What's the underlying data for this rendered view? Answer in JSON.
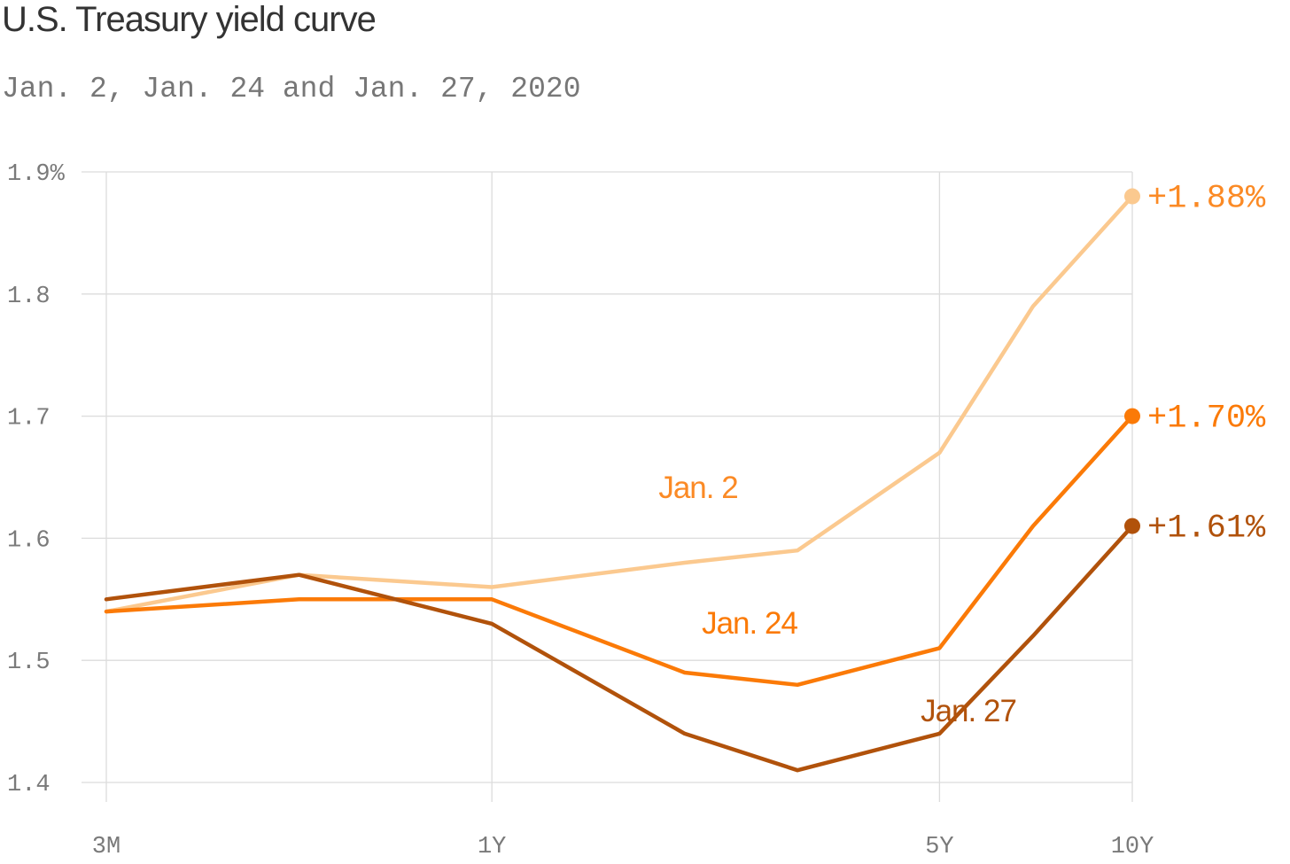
{
  "header": {
    "title": "U.S. Treasury yield curve",
    "subtitle": "Jan. 2, Jan. 24 and Jan. 27, 2020"
  },
  "chart_data": {
    "type": "line",
    "title": "U.S. Treasury yield curve",
    "subtitle": "Jan. 2, Jan. 24 and Jan. 27, 2020",
    "xlabel": "",
    "ylabel": "",
    "x": [
      0.25,
      0.5,
      1,
      2,
      3,
      5,
      7,
      10
    ],
    "x_scale": "log",
    "x_ticks": [
      {
        "value": 0.25,
        "label": "3M"
      },
      {
        "value": 1,
        "label": "1Y"
      },
      {
        "value": 5,
        "label": "5Y"
      },
      {
        "value": 10,
        "label": "10Y"
      }
    ],
    "ylim": [
      1.4,
      1.9
    ],
    "y_ticks": [
      {
        "value": 1.9,
        "label": "1.9%"
      },
      {
        "value": 1.8,
        "label": "1.8"
      },
      {
        "value": 1.7,
        "label": "1.7"
      },
      {
        "value": 1.6,
        "label": "1.6"
      },
      {
        "value": 1.5,
        "label": "1.5"
      },
      {
        "value": 1.4,
        "label": "1.4"
      }
    ],
    "grid": true,
    "series": [
      {
        "name": "Jan. 2",
        "color": "#fbc98f",
        "label_color": "#fb8a25",
        "values": [
          1.54,
          1.57,
          1.56,
          1.58,
          1.59,
          1.67,
          1.79,
          1.88
        ],
        "end_label": "+1.88%"
      },
      {
        "name": "Jan. 24",
        "color": "#fb7a07",
        "label_color": "#fb7a07",
        "values": [
          1.54,
          1.55,
          1.55,
          1.49,
          1.48,
          1.51,
          1.61,
          1.7
        ],
        "end_label": "+1.70%"
      },
      {
        "name": "Jan. 27",
        "color": "#b1520b",
        "label_color": "#b1520b",
        "values": [
          1.55,
          1.57,
          1.53,
          1.44,
          1.41,
          1.44,
          1.52,
          1.61
        ],
        "end_label": "+1.61%"
      }
    ]
  }
}
